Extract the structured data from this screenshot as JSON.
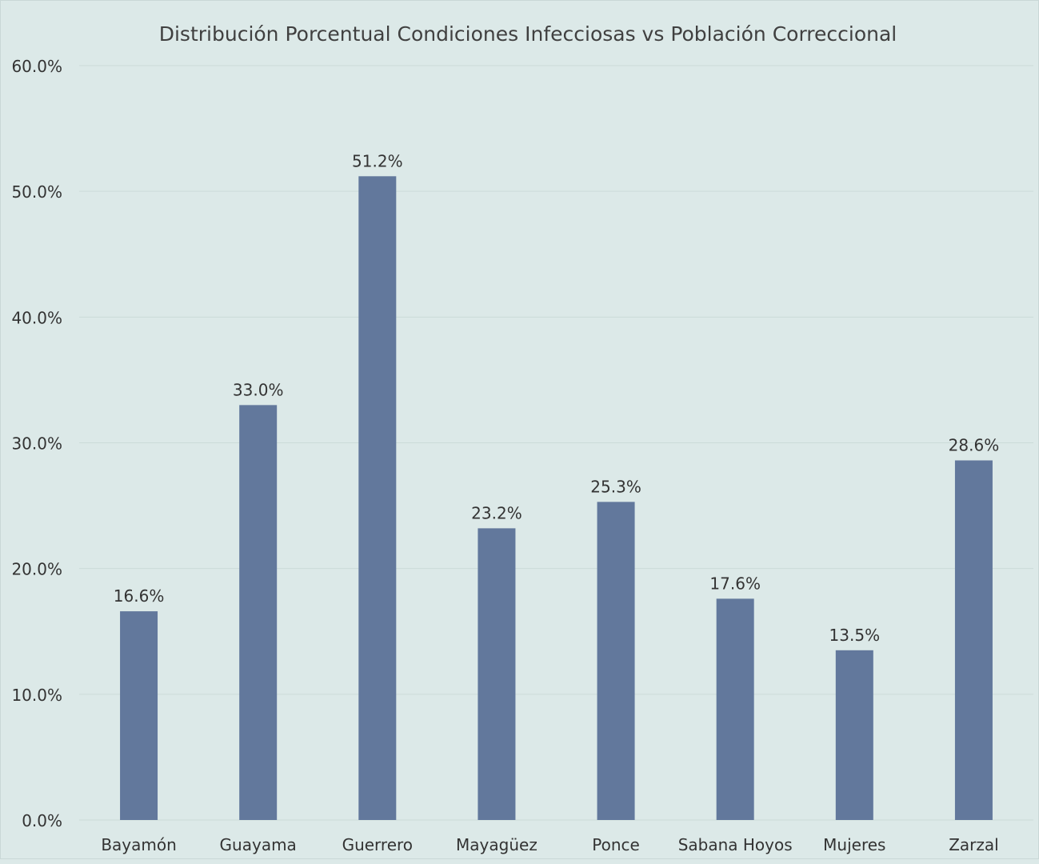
{
  "colors": {
    "background": "#dce9e8",
    "bar": "#62789c",
    "gridline": "#cbdbd9",
    "text": "#333333",
    "title_text": "#404040"
  },
  "chart_data": {
    "type": "bar",
    "title": "Distribución Porcentual  Condiciones Infecciosas vs Población Correccional",
    "xlabel": "",
    "ylabel": "",
    "categories": [
      "Bayamón",
      "Guayama",
      "Guerrero",
      "Mayagüez",
      "Ponce",
      "Sabana Hoyos",
      "Mujeres",
      "Zarzal"
    ],
    "values": [
      16.6,
      33.0,
      51.2,
      23.2,
      25.3,
      17.6,
      13.5,
      28.6
    ],
    "data_labels": [
      "16.6%",
      "33.0%",
      "51.2%",
      "23.2%",
      "25.3%",
      "17.6%",
      "13.5%",
      "28.6%"
    ],
    "ylim": [
      0,
      60
    ],
    "yticks": [
      0,
      10,
      20,
      30,
      40,
      50,
      60
    ],
    "ytick_labels": [
      "0.0%",
      "10.0%",
      "20.0%",
      "30.0%",
      "40.0%",
      "50.0%",
      "60.0%"
    ],
    "grid": true,
    "legend": "none"
  }
}
